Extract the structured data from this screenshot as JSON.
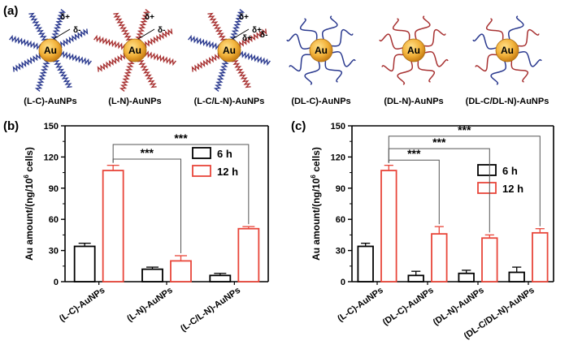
{
  "panel_labels": {
    "a": "(a)",
    "b": "(b)",
    "c": "(c)"
  },
  "colors": {
    "blue_chain": "#2b3a8f",
    "red_chain": "#a83232",
    "bar_6h": "#000000",
    "bar_12h": "#e8463a",
    "gold_core": "#f2b23a"
  },
  "nanoparticles": [
    {
      "label": "(L-C)-AuNPs",
      "core_text": "Au",
      "chains": "blue-straight",
      "charges": [
        "δ+",
        "δ-"
      ]
    },
    {
      "label": "(L-N)-AuNPs",
      "core_text": "Au",
      "chains": "red-straight",
      "charges": [
        "δ+",
        "δ-"
      ]
    },
    {
      "label": "(L-C/L-N)-AuNPs",
      "core_text": "Au",
      "chains": "mixed-straight",
      "charges": [
        "δ+",
        "δ+",
        "δ+",
        "δ-"
      ]
    },
    {
      "label": "(DL-C)-AuNPs",
      "core_text": "Au",
      "chains": "blue-curly",
      "charges": []
    },
    {
      "label": "(DL-N)-AuNPs",
      "core_text": "Au",
      "chains": "red-curly",
      "charges": []
    },
    {
      "label": "(DL-C/DL-N)-AuNPs",
      "core_text": "Au",
      "chains": "mixed-curly",
      "charges": []
    }
  ],
  "chart_data": [
    {
      "type": "bar",
      "panel": "(b)",
      "ylabel": "Au amount/(ng/10^6 cells)",
      "ylabel_main": "Au amount/(ng/10",
      "ylabel_sup": "6",
      "ylabel_end": " cells)",
      "ylim": [
        0,
        150
      ],
      "yticks": [
        "0",
        "30",
        "60",
        "90",
        "120",
        "150"
      ],
      "categories": [
        "(L-C)-AuNPs",
        "(L-N)-AuNPs",
        "(L-C/L-N)-AuNPs"
      ],
      "series": [
        {
          "name": "6 h",
          "values": [
            34,
            12,
            6
          ],
          "errors": [
            3,
            2,
            2
          ]
        },
        {
          "name": "12 h",
          "values": [
            107,
            20,
            51
          ],
          "errors": [
            5,
            5,
            2
          ]
        }
      ],
      "significance": [
        "***",
        "***"
      ],
      "legend": "top-right"
    },
    {
      "type": "bar",
      "panel": "(c)",
      "ylabel": "Au amount/(ng/10^6 cells)",
      "ylabel_main": "Au amount/(ng/10",
      "ylabel_sup": "6",
      "ylabel_end": " cells)",
      "ylim": [
        0,
        150
      ],
      "yticks": [
        "0",
        "30",
        "60",
        "90",
        "120",
        "150"
      ],
      "categories": [
        "(L-C)-AuNPs",
        "(DL-C)-AuNPs",
        "(DL-N)-AuNPs",
        "(DL-C/DL-N)-AuNPs"
      ],
      "series": [
        {
          "name": "6 h",
          "values": [
            34,
            6,
            8,
            9
          ],
          "errors": [
            3,
            4,
            3,
            5
          ]
        },
        {
          "name": "12 h",
          "values": [
            107,
            46,
            42,
            47
          ],
          "errors": [
            5,
            7,
            3,
            4
          ]
        }
      ],
      "significance": [
        "***",
        "***",
        "***"
      ],
      "legend": "right"
    }
  ]
}
